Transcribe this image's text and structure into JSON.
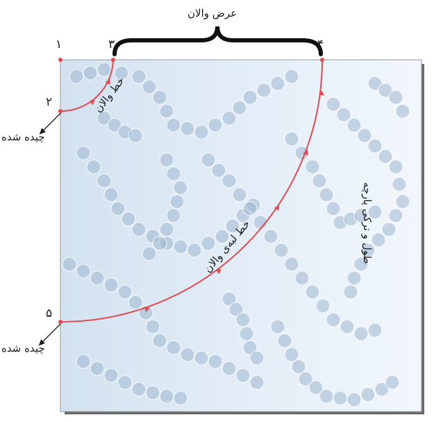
{
  "diagram": {
    "point_labels": {
      "p1": "۱",
      "p2": "۲",
      "p3": "۳",
      "p4": "۴",
      "p5": "۵"
    },
    "labels": {
      "ruffle_width": "عرض والان",
      "ruffle_line": "خط والان",
      "ruffle_edge_line": "خط لبه‌ی والان",
      "fabric_length_and_fold": "طول و ترکی پارچه",
      "cut_piece_top": "چیده شده",
      "cut_piece_bottom": "چیده شده"
    },
    "colors": {
      "fabric": "#dde9f4",
      "dot": "#9fb7cf",
      "cut_line": "#e04a55",
      "frame": "#3a3a3a",
      "brace": "#111111"
    }
  }
}
